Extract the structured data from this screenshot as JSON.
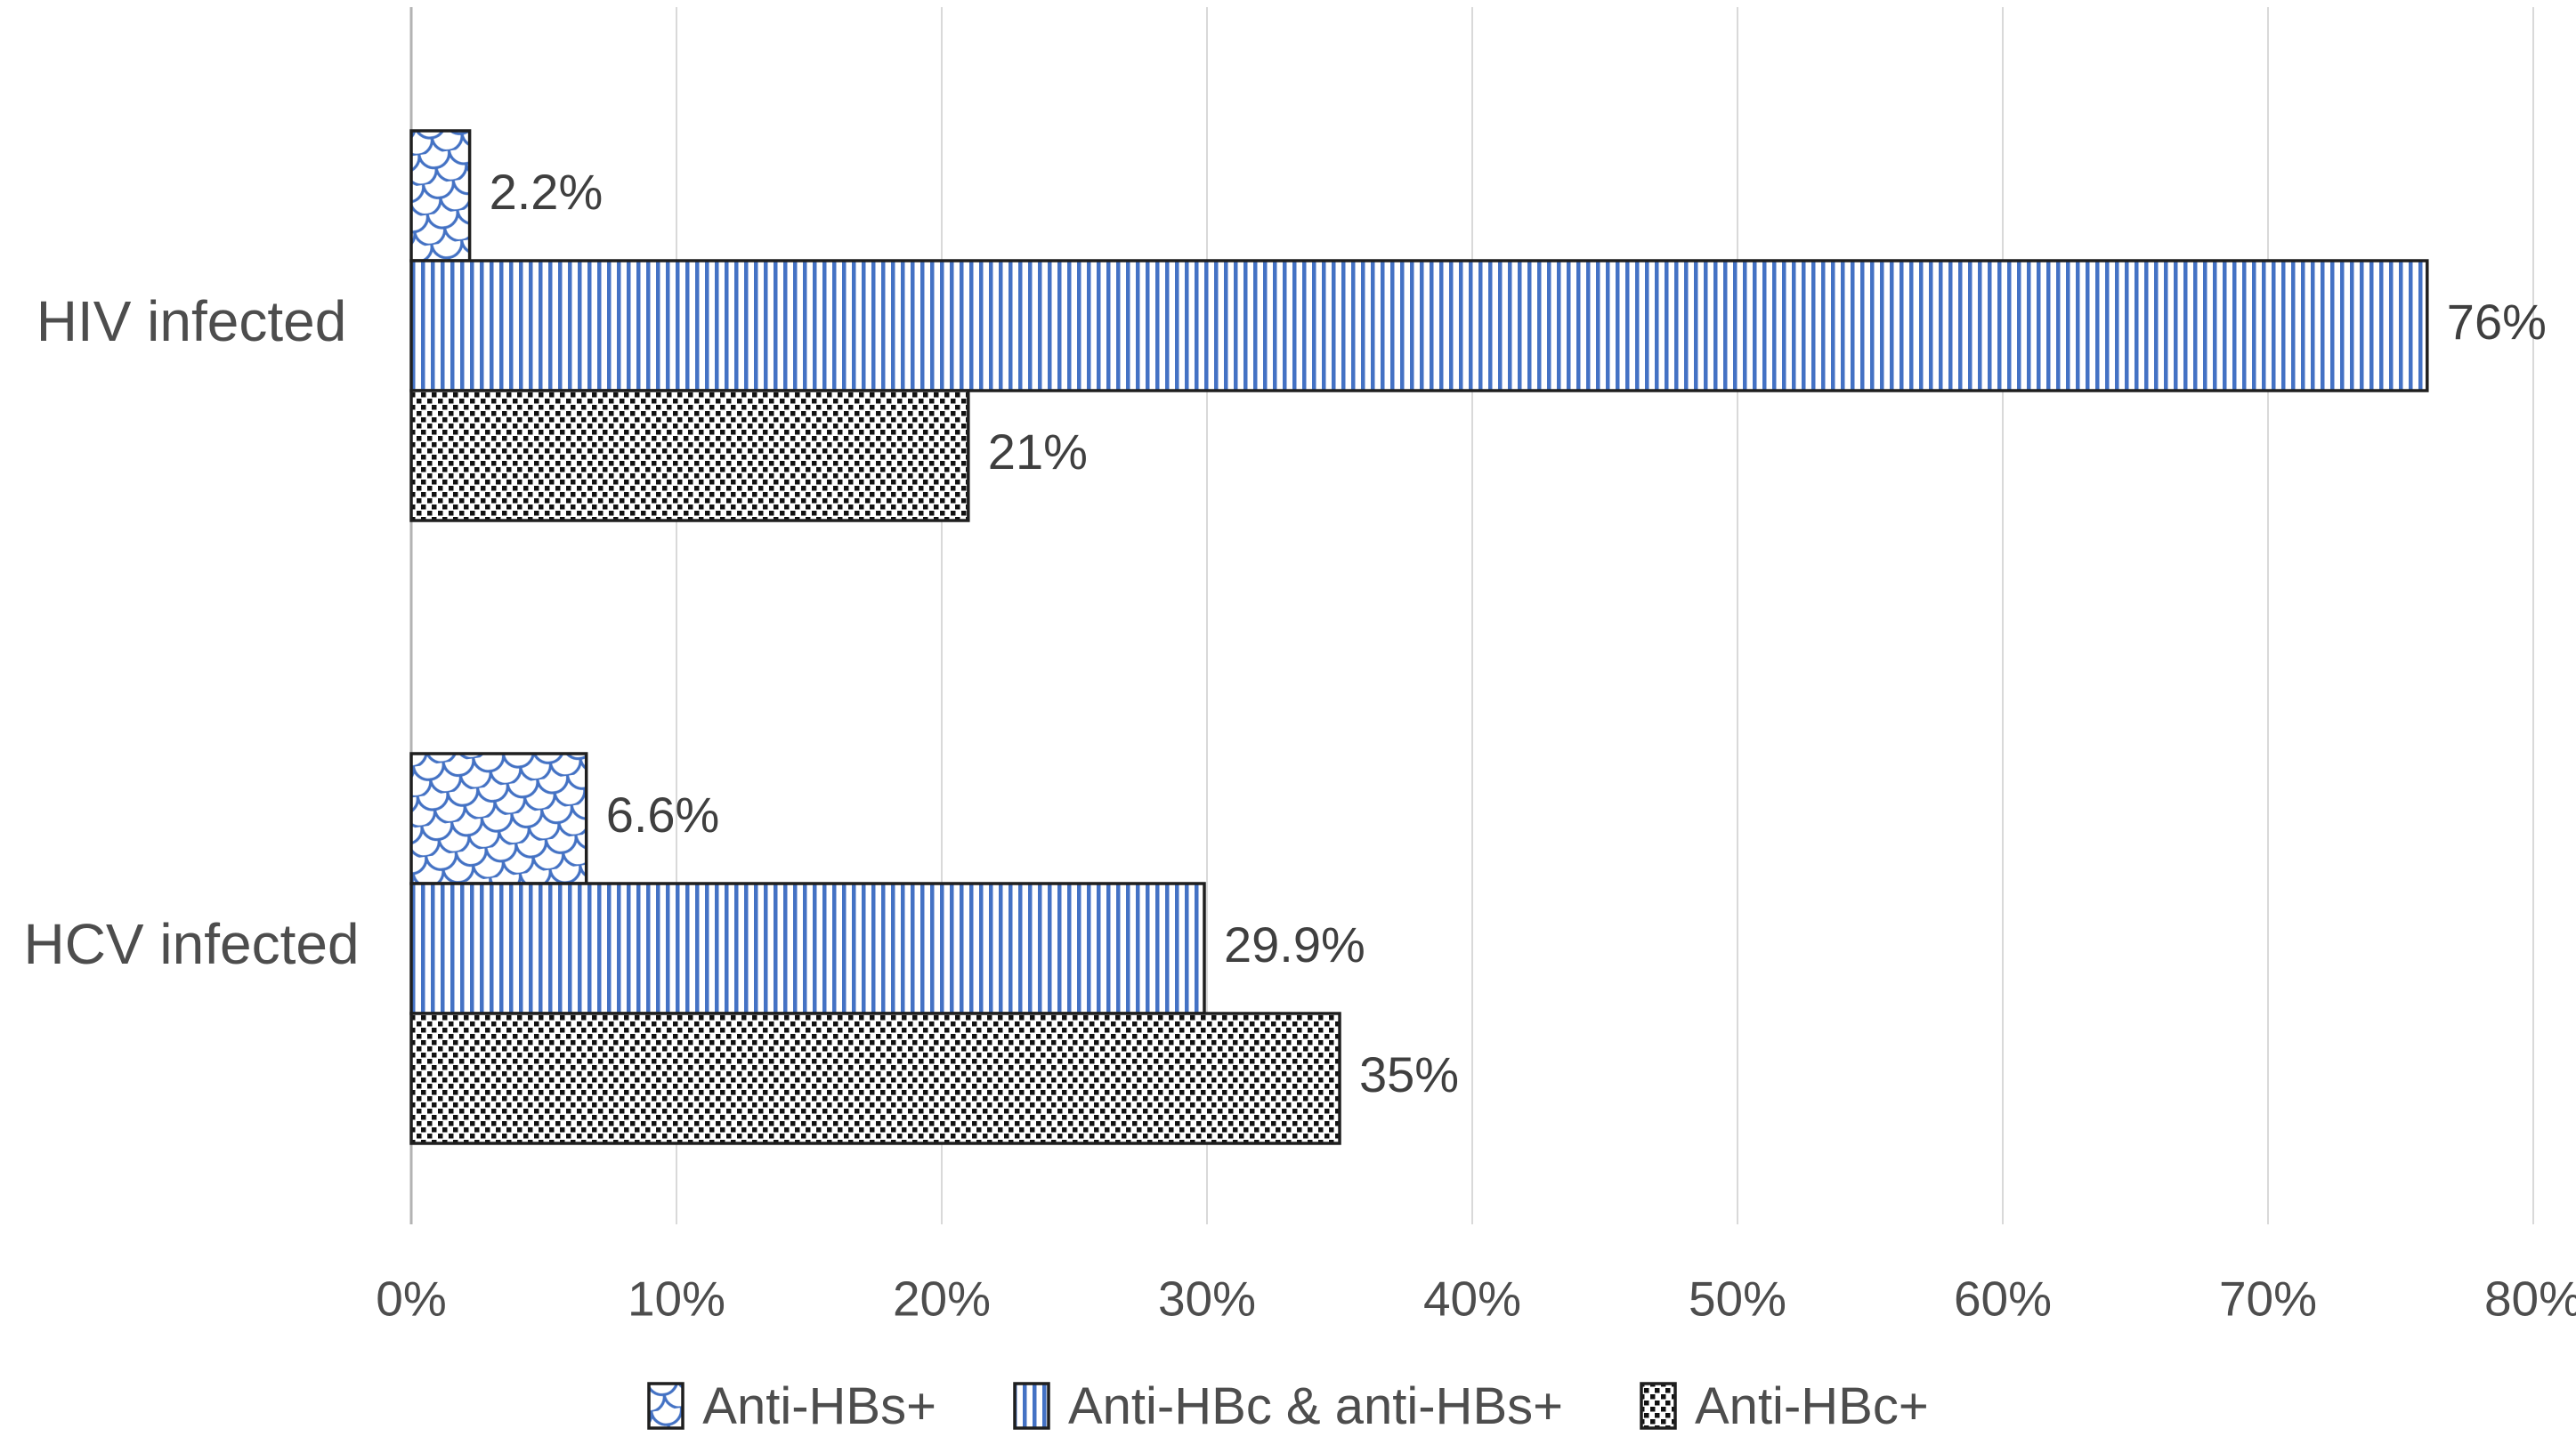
{
  "chart_data": {
    "type": "bar",
    "orientation": "horizontal",
    "title": "",
    "xlabel": "",
    "ylabel": "",
    "categories": [
      "HIV infected",
      "HCV infected"
    ],
    "series": [
      {
        "name": "Anti-HBs+",
        "pattern": "scales",
        "values": [
          2.2,
          6.6
        ],
        "data_labels": [
          "2.2%",
          "6.6%"
        ]
      },
      {
        "name": "Anti-HBc & anti-HBs+",
        "pattern": "vertical-lines",
        "values": [
          76,
          29.9
        ],
        "data_labels": [
          "76%",
          "29.9%"
        ]
      },
      {
        "name": "Anti-HBc+",
        "pattern": "dots",
        "values": [
          21,
          35
        ],
        "data_labels": [
          "21%",
          "35%"
        ]
      }
    ],
    "xlim": [
      0,
      80
    ],
    "x_ticks": [
      {
        "value": 0,
        "label": "0%"
      },
      {
        "value": 10,
        "label": "10%"
      },
      {
        "value": 20,
        "label": "20%"
      },
      {
        "value": 30,
        "label": "30%"
      },
      {
        "value": 40,
        "label": "40%"
      },
      {
        "value": 50,
        "label": "50%"
      },
      {
        "value": 60,
        "label": "60%"
      },
      {
        "value": 70,
        "label": "70%"
      },
      {
        "value": 80,
        "label": "80%"
      }
    ],
    "grid": "vertical-gridlines-on",
    "legend_position": "bottom",
    "colors": {
      "pattern_blue": "#4472C4",
      "pattern_black": "#111111",
      "bar_border": "#1f1f1f",
      "gridline": "#d9d9d9",
      "axis_line": "#b3b3b3",
      "category_text": "#4d4d4d",
      "tick_text": "#4d4d4d",
      "data_label_text": "#3f3f3f",
      "legend_text": "#4d4d4d",
      "background": "#ffffff"
    }
  }
}
